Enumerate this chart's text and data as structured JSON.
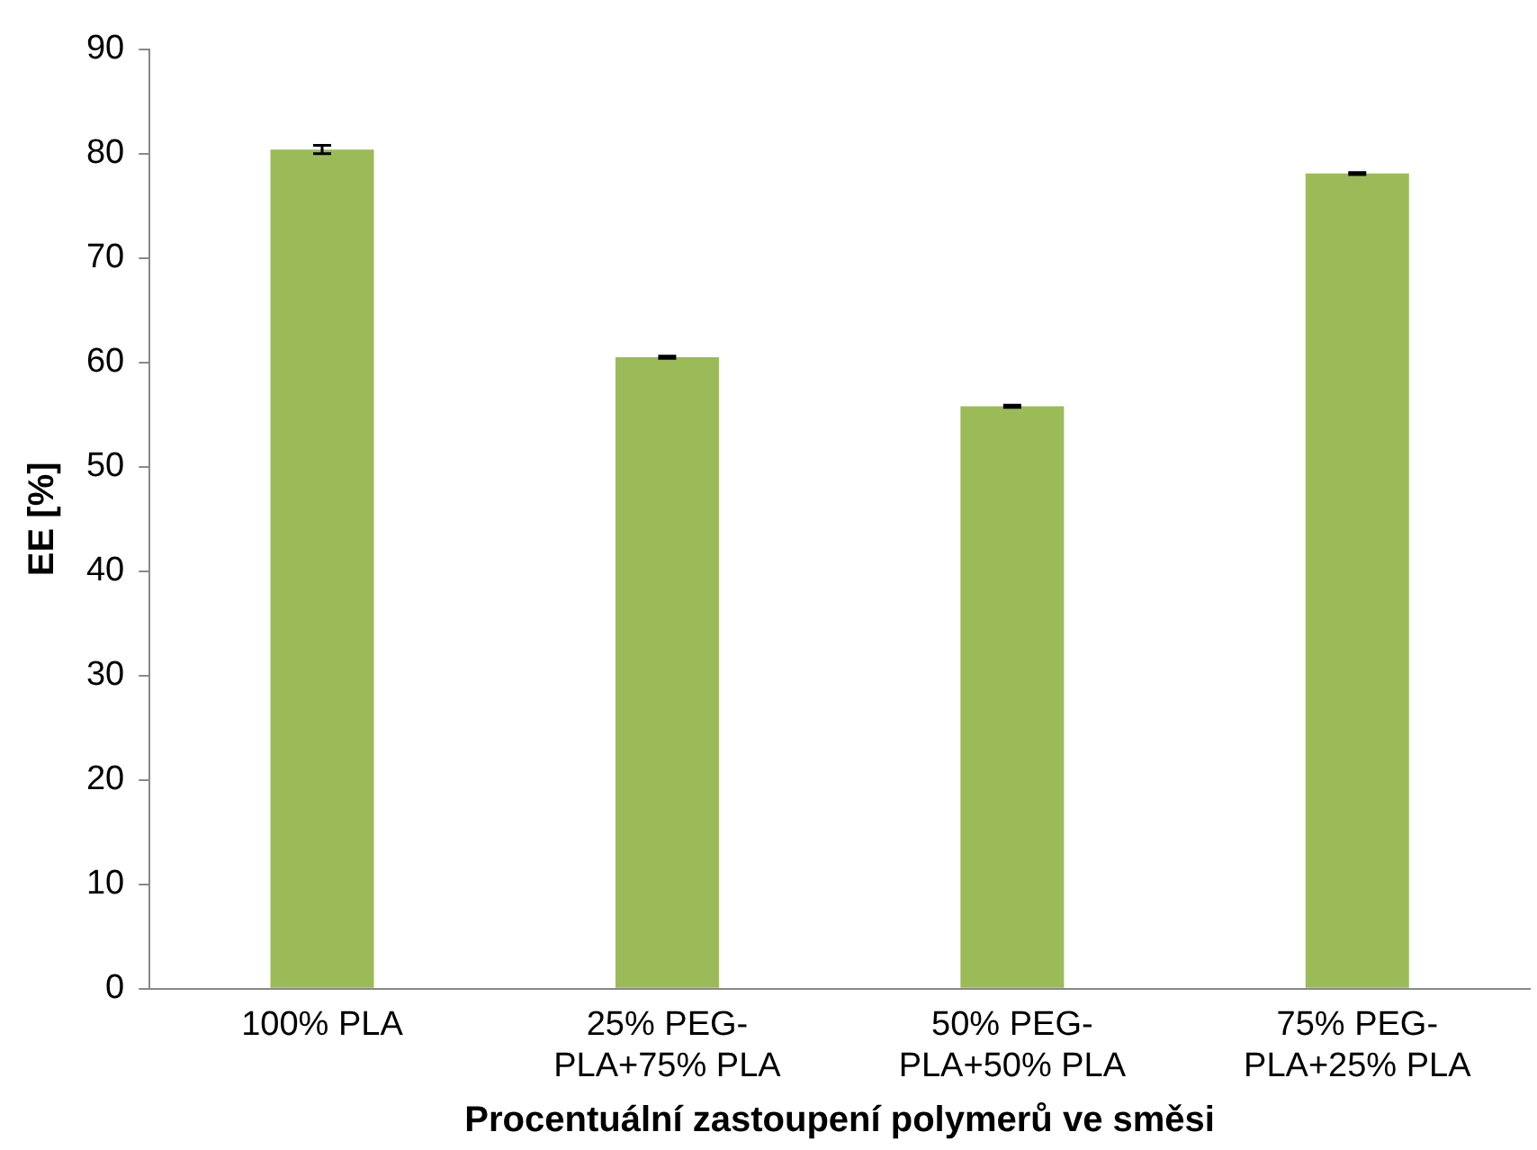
{
  "chart_data": {
    "type": "bar",
    "xlabel": "Procentuální zastoupení polymerů ve směsi",
    "ylabel": "EE [%]",
    "categories": [
      "100% PLA",
      "25% PEG-PLA+75% PLA",
      "50% PEG-PLA+50% PLA",
      "75% PEG-PLA+25% PLA"
    ],
    "values": [
      80.4,
      60.5,
      55.8,
      78.1
    ],
    "errors": [
      0.4,
      0.1,
      0.1,
      0.1
    ],
    "color": "#9bbb59",
    "ylim": [
      0,
      90
    ],
    "yticks": [
      0,
      10,
      20,
      30,
      40,
      50,
      60,
      70,
      80,
      90
    ],
    "grid": false,
    "legend": false
  }
}
